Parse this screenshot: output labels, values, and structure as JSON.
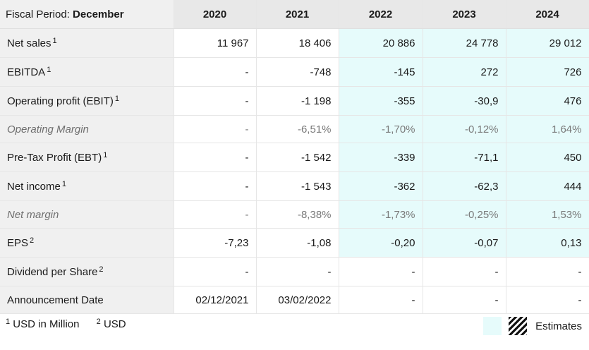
{
  "header": {
    "period_prefix": "Fiscal Period: ",
    "period_value": "December",
    "years": [
      "2020",
      "2021",
      "2022",
      "2023",
      "2024"
    ]
  },
  "rows": [
    {
      "label": "Net sales",
      "note": "1",
      "values": [
        "11 967",
        "18 406",
        "20 886",
        "24 778",
        "29 012"
      ]
    },
    {
      "label": "EBITDA",
      "note": "1",
      "values": [
        "-",
        "-748",
        "-145",
        "272",
        "726"
      ]
    },
    {
      "label": "Operating profit (EBIT)",
      "note": "1",
      "values": [
        "-",
        "-1 198",
        "-355",
        "-30,9",
        "476"
      ]
    },
    {
      "label": "Operating Margin",
      "note": "",
      "values": [
        "-",
        "-6,51%",
        "-1,70%",
        "-0,12%",
        "1,64%"
      ]
    },
    {
      "label": "Pre-Tax Profit (EBT)",
      "note": "1",
      "values": [
        "-",
        "-1 542",
        "-339",
        "-71,1",
        "450"
      ]
    },
    {
      "label": "Net income",
      "note": "1",
      "values": [
        "-",
        "-1 543",
        "-362",
        "-62,3",
        "444"
      ]
    },
    {
      "label": "Net margin",
      "note": "",
      "values": [
        "-",
        "-8,38%",
        "-1,73%",
        "-0,25%",
        "1,53%"
      ]
    },
    {
      "label": "EPS",
      "note": "2",
      "values": [
        "-7,23",
        "-1,08",
        "-0,20",
        "-0,07",
        "0,13"
      ]
    },
    {
      "label": "Dividend per Share",
      "note": "2",
      "values": [
        "-",
        "-",
        "-",
        "-",
        "-"
      ]
    },
    {
      "label": "Announcement Date",
      "note": "",
      "values": [
        "02/12/2021",
        "03/02/2022",
        "-",
        "-",
        "-"
      ]
    }
  ],
  "footnotes": [
    {
      "mark": "1",
      "text": "USD in Million"
    },
    {
      "mark": "2",
      "text": "USD"
    }
  ],
  "legend": {
    "label": "Estimates"
  },
  "colors": {
    "estimate_bg": "#e6fbfb",
    "label_bg": "#f0f0f0",
    "header_bg": "#e8e8e8"
  }
}
